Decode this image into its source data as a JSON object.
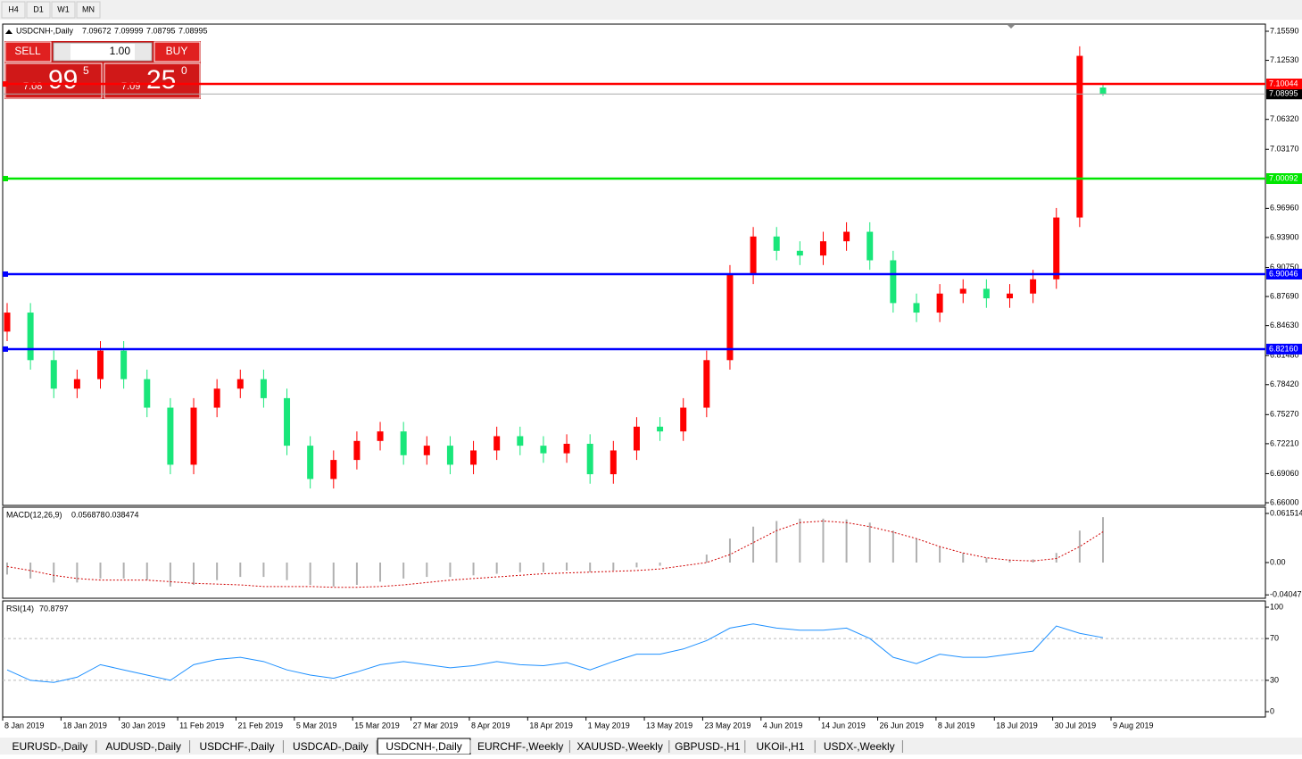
{
  "toolbar": [
    "H4",
    "D1",
    "W1",
    "MN"
  ],
  "trade_panel": {
    "sell": "SELL",
    "buy": "BUY",
    "lot": "1.00",
    "sell_price": [
      "7.08",
      "99",
      "5"
    ],
    "buy_price": [
      "7.09",
      "25",
      "0"
    ]
  },
  "tabs": [
    "EURUSD-,Daily",
    "AUDUSD-,Daily",
    "USDCHF-,Daily",
    "USDCAD-,Daily",
    "USDCNH-,Daily",
    "EURCHF-,Weekly",
    "XAUUSD-,Weekly",
    "GBPUSD-,H1",
    "UKOil-,H1",
    "USDX-,Weekly"
  ],
  "active_tab": 4,
  "chart_data": {
    "type": "candlestick",
    "title": "USDCNH-,Daily",
    "up_color": "#ff0000",
    "down_color": "#19e67a",
    "open": [
      6.84,
      6.86,
      6.81,
      6.78,
      6.79,
      6.82,
      6.79,
      6.76,
      6.7,
      6.76,
      6.78,
      6.79,
      6.77,
      6.72,
      6.685,
      6.705,
      6.725,
      6.735,
      6.71,
      6.72,
      6.7,
      6.715,
      6.73,
      6.72,
      6.712,
      6.722,
      6.69,
      6.715,
      6.74,
      6.735,
      6.76,
      6.81,
      6.9,
      6.94,
      6.925,
      6.92,
      6.935,
      6.945,
      6.915,
      6.87,
      6.86,
      6.88,
      6.885,
      6.875,
      6.88,
      6.895,
      6.96,
      7.09672
    ],
    "high": [
      6.87,
      6.87,
      6.82,
      6.8,
      6.83,
      6.83,
      6.8,
      6.77,
      6.77,
      6.79,
      6.8,
      6.8,
      6.78,
      6.73,
      6.715,
      6.735,
      6.745,
      6.745,
      6.73,
      6.73,
      6.725,
      6.74,
      6.74,
      6.73,
      6.732,
      6.732,
      6.725,
      6.75,
      6.75,
      6.77,
      6.82,
      6.91,
      6.95,
      6.95,
      6.935,
      6.945,
      6.955,
      6.955,
      6.925,
      6.88,
      6.89,
      6.895,
      6.895,
      6.89,
      6.905,
      6.97,
      7.14,
      7.09999
    ],
    "low": [
      6.83,
      6.8,
      6.77,
      6.77,
      6.78,
      6.78,
      6.75,
      6.69,
      6.69,
      6.75,
      6.77,
      6.76,
      6.71,
      6.675,
      6.675,
      6.695,
      6.715,
      6.7,
      6.7,
      6.69,
      6.69,
      6.705,
      6.71,
      6.702,
      6.702,
      6.68,
      6.68,
      6.705,
      6.725,
      6.725,
      6.75,
      6.8,
      6.89,
      6.915,
      6.91,
      6.91,
      6.925,
      6.905,
      6.86,
      6.85,
      6.85,
      6.87,
      6.865,
      6.865,
      6.87,
      6.885,
      6.95,
      7.08795
    ],
    "close": [
      6.86,
      6.81,
      6.78,
      6.79,
      6.82,
      6.79,
      6.76,
      6.7,
      6.76,
      6.78,
      6.79,
      6.77,
      6.72,
      6.685,
      6.705,
      6.725,
      6.735,
      6.71,
      6.72,
      6.7,
      6.715,
      6.73,
      6.72,
      6.712,
      6.722,
      6.69,
      6.715,
      6.74,
      6.735,
      6.76,
      6.81,
      6.9,
      6.94,
      6.925,
      6.92,
      6.935,
      6.945,
      6.915,
      6.87,
      6.86,
      6.88,
      6.885,
      6.875,
      6.88,
      6.895,
      6.96,
      7.13,
      7.08995
    ],
    "ylim": [
      6.6572,
      7.1634
    ],
    "yticks": [
      {
        "value": 7.1559,
        "label": "7.15590"
      },
      {
        "value": 7.1253,
        "label": "7.12530"
      },
      {
        "value": 7.0632,
        "label": "7.06320"
      },
      {
        "value": 7.0317,
        "label": "7.03170"
      },
      {
        "value": 6.9696,
        "label": "6.96960"
      },
      {
        "value": 6.939,
        "label": "6.93900"
      },
      {
        "value": 6.9075,
        "label": "6.90750"
      },
      {
        "value": 6.8769,
        "label": "6.87690"
      },
      {
        "value": 6.8463,
        "label": "6.84630"
      },
      {
        "value": 6.8148,
        "label": "6.81480"
      },
      {
        "value": 6.7842,
        "label": "6.78420"
      },
      {
        "value": 6.7527,
        "label": "6.75270"
      },
      {
        "value": 6.7221,
        "label": "6.72210"
      },
      {
        "value": 6.6906,
        "label": "6.69060"
      },
      {
        "value": 6.66,
        "label": "6.66000"
      }
    ],
    "levels": [
      {
        "value": 7.10044,
        "color": "#ff0000"
      },
      {
        "value": 7.00092,
        "color": "#00e600"
      },
      {
        "value": 6.90046,
        "color": "#0000ff"
      },
      {
        "value": 6.8216,
        "label": "6.82160",
        "color": "#0000ff"
      }
    ],
    "x_labels": [
      "8 Jan 2019",
      "18 Jan 2019",
      "30 Jan 2019",
      "11 Feb 2019",
      "21 Feb 2019",
      "5 Mar 2019",
      "15 Mar 2019",
      "27 Mar 2019",
      "8 Apr 2019",
      "18 Apr 2019",
      "1 May 2019",
      "13 May 2019",
      "23 May 2019",
      "4 Jun 2019",
      "14 Jun 2019",
      "26 Jun 2019",
      "8 Jul 2019",
      "18 Jul 2019",
      "30 Jul 2019",
      "9 Aug 2019"
    ],
    "macd": {
      "title": "MACD(12,26,9)",
      "values": [
        -0.015,
        -0.02,
        -0.025,
        -0.025,
        -0.02,
        -0.02,
        -0.022,
        -0.03,
        -0.028,
        -0.022,
        -0.018,
        -0.018,
        -0.022,
        -0.028,
        -0.03,
        -0.028,
        -0.024,
        -0.02,
        -0.018,
        -0.018,
        -0.016,
        -0.014,
        -0.012,
        -0.012,
        -0.01,
        -0.012,
        -0.01,
        -0.006,
        -0.004,
        0.0,
        0.01,
        0.03,
        0.045,
        0.052,
        0.055,
        0.055,
        0.054,
        0.05,
        0.04,
        0.03,
        0.02,
        0.012,
        0.006,
        0.004,
        0.004,
        0.012,
        0.04,
        0.056878
      ],
      "signal": [
        -0.005,
        -0.01,
        -0.016,
        -0.02,
        -0.022,
        -0.022,
        -0.022,
        -0.024,
        -0.026,
        -0.027,
        -0.028,
        -0.03,
        -0.03,
        -0.03,
        -0.031,
        -0.031,
        -0.03,
        -0.028,
        -0.025,
        -0.022,
        -0.02,
        -0.018,
        -0.016,
        -0.014,
        -0.013,
        -0.012,
        -0.011,
        -0.01,
        -0.008,
        -0.004,
        0.0,
        0.01,
        0.025,
        0.04,
        0.05,
        0.052,
        0.05,
        0.045,
        0.038,
        0.03,
        0.02,
        0.012,
        0.006,
        0.003,
        0.002,
        0.005,
        0.02,
        0.038474
      ],
      "ylim": [
        -0.0425,
        0.0671
      ],
      "yticks": [
        0.061514,
        {
          "value": 0,
          "label": "0.00"
        },
        -0.04047
      ]
    },
    "rsi": {
      "title": "RSI(14)",
      "values": [
        40,
        30,
        28,
        33,
        45,
        40,
        35,
        30,
        45,
        50,
        52,
        48,
        40,
        35,
        32,
        38,
        45,
        48,
        45,
        42,
        44,
        48,
        45,
        44,
        47,
        40,
        48,
        55,
        55,
        60,
        68,
        80,
        84,
        80,
        78,
        78,
        80,
        70,
        52,
        46,
        55,
        52,
        52,
        55,
        58,
        82,
        75,
        70.8797
      ],
      "ylim": [
        0,
        100
      ],
      "yticks": [
        100,
        70,
        30,
        0
      ]
    }
  }
}
